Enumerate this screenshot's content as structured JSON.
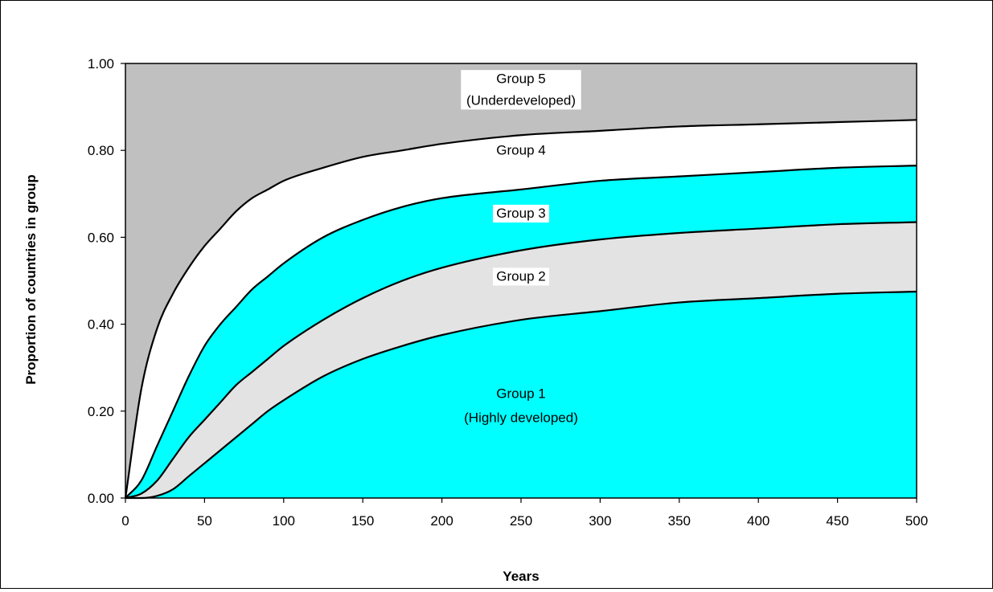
{
  "chart_data": {
    "type": "area",
    "stacking": "cumulative-boundaries",
    "xlabel": "Years",
    "ylabel": "Proportion of countries in group",
    "xlim": [
      0,
      500
    ],
    "ylim": [
      0,
      1
    ],
    "x_ticks": [
      "0",
      "50",
      "100",
      "150",
      "200",
      "250",
      "300",
      "350",
      "400",
      "450",
      "500"
    ],
    "y_ticks": [
      "0.00",
      "0.20",
      "0.40",
      "0.60",
      "0.80",
      "1.00"
    ],
    "grid": false,
    "legend": "none",
    "x": [
      0,
      10,
      20,
      30,
      40,
      50,
      60,
      70,
      80,
      90,
      100,
      125,
      150,
      175,
      200,
      250,
      300,
      350,
      400,
      450,
      500
    ],
    "boundaries": [
      {
        "upper_of": "Group 1",
        "y": [
          0.0,
          0.0,
          0.005,
          0.02,
          0.05,
          0.08,
          0.11,
          0.14,
          0.17,
          0.2,
          0.225,
          0.28,
          0.32,
          0.35,
          0.375,
          0.41,
          0.43,
          0.45,
          0.46,
          0.47,
          0.475
        ]
      },
      {
        "upper_of": "Group 2",
        "y": [
          0.0,
          0.01,
          0.04,
          0.09,
          0.14,
          0.18,
          0.22,
          0.26,
          0.29,
          0.32,
          0.35,
          0.41,
          0.46,
          0.5,
          0.53,
          0.57,
          0.595,
          0.61,
          0.62,
          0.63,
          0.635
        ]
      },
      {
        "upper_of": "Group 3",
        "y": [
          0.0,
          0.04,
          0.12,
          0.2,
          0.28,
          0.35,
          0.4,
          0.44,
          0.48,
          0.51,
          0.54,
          0.6,
          0.64,
          0.67,
          0.69,
          0.71,
          0.73,
          0.74,
          0.75,
          0.76,
          0.765
        ]
      },
      {
        "upper_of": "Group 4",
        "y": [
          0.0,
          0.25,
          0.39,
          0.47,
          0.53,
          0.58,
          0.62,
          0.66,
          0.69,
          0.71,
          0.73,
          0.76,
          0.785,
          0.8,
          0.815,
          0.835,
          0.845,
          0.855,
          0.86,
          0.865,
          0.87
        ]
      }
    ],
    "groups": [
      {
        "name": "Group 1",
        "color": "#00FFFF",
        "label_lines": [
          "Group 1",
          "(Highly developed)"
        ],
        "label_x": 250,
        "label_y": [
          0.23,
          0.175
        ],
        "label_bg": false
      },
      {
        "name": "Group 2",
        "color": "#E3E3E3",
        "label_lines": [
          "Group 2"
        ],
        "label_x": 250,
        "label_y": [
          0.5
        ],
        "label_bg": true
      },
      {
        "name": "Group 3",
        "color": "#00FFFF",
        "label_lines": [
          "Group 3"
        ],
        "label_x": 250,
        "label_y": [
          0.645
        ],
        "label_bg": true
      },
      {
        "name": "Group 4",
        "color": "#FFFFFF",
        "label_lines": [
          "Group 4"
        ],
        "label_x": 250,
        "label_y": [
          0.79
        ],
        "label_bg": false
      },
      {
        "name": "Group 5",
        "color": "#C0C0C0",
        "label_lines": [
          "Group 5",
          "(Underdeveloped)"
        ],
        "label_x": 250,
        "label_y": [
          0.955,
          0.905
        ],
        "label_bg": true
      }
    ]
  }
}
